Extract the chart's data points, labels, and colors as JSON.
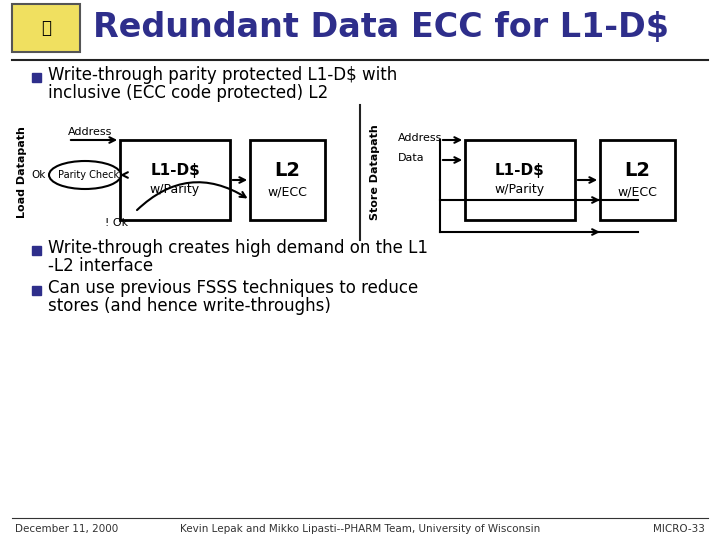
{
  "title": "Redundant Data ECC for L1-D$",
  "title_color": "#2E2E8B",
  "background_color": "#FFFFFF",
  "bullet_color": "#2E2E8B",
  "text_color": "#000000",
  "box_edge_color": "#000000",
  "line_color": "#000000",
  "footer_left": "December 11, 2000",
  "footer_center": "Kevin Lepak and Mikko Lipasti--PHARM Team, University of Wisconsin",
  "footer_right": "MICRO-33",
  "logo_facecolor": "#F0E060",
  "logo_edgecolor": "#555555",
  "divider_color": "#222222",
  "footer_line_color": "#333333"
}
